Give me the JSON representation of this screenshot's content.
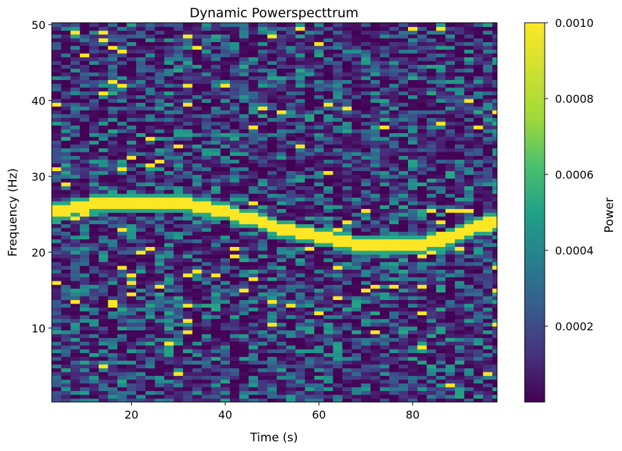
{
  "chart_data": {
    "type": "heatmap",
    "title": "Dynamic Powerspecttrum",
    "xlabel": "Time (s)",
    "ylabel": "Frequency (Hz)",
    "xlim": [
      3,
      98
    ],
    "ylim": [
      0.25,
      50.25
    ],
    "x_ticks": [
      20,
      40,
      60,
      80
    ],
    "x_tick_labels": [
      "20",
      "40",
      "60",
      "80"
    ],
    "y_ticks": [
      10,
      20,
      30,
      40,
      50
    ],
    "y_tick_labels": [
      "10",
      "20",
      "30",
      "40",
      "50"
    ],
    "time_step": 2,
    "freq_step": 0.5,
    "colormap": "viridis",
    "colorbar": {
      "label": "Power",
      "vmin": 0,
      "vmax": 0.001,
      "ticks": [
        0.0002,
        0.0004,
        0.0006,
        0.0008,
        0.001
      ],
      "tick_labels": [
        "0.0002",
        "0.0004",
        "0.0006",
        "0.0008",
        "0.0010"
      ]
    },
    "ridge": {
      "description_points": [
        {
          "time": 4,
          "freq": 25.5
        },
        {
          "time": 14,
          "freq": 26.5
        },
        {
          "time": 30,
          "freq": 26.5
        },
        {
          "time": 40,
          "freq": 25.5
        },
        {
          "time": 50,
          "freq": 23.5
        },
        {
          "time": 60,
          "freq": 22
        },
        {
          "time": 70,
          "freq": 21
        },
        {
          "time": 82,
          "freq": 21
        },
        {
          "time": 88,
          "freq": 22
        },
        {
          "time": 97,
          "freq": 24
        }
      ],
      "power": 0.001
    },
    "background_power_range": [
      0,
      0.0006
    ]
  }
}
